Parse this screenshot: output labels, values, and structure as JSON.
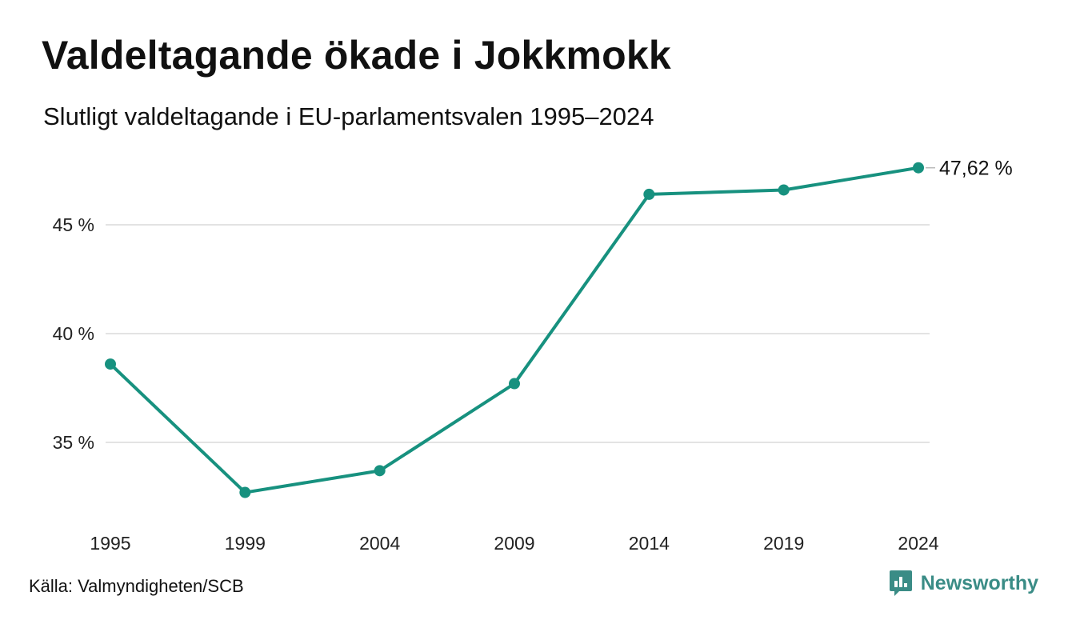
{
  "title": "Valdeltagande ökade i Jokkmokk",
  "subtitle": "Slutligt valdeltagande i EU-parlamentsvalen 1995–2024",
  "source": "Källa: Valmyndigheten/SCB",
  "brand": {
    "name": "Newsworthy",
    "icon": "newsworthy-logo-icon",
    "color": "#3a8c86"
  },
  "chart_data": {
    "type": "line",
    "title": "Valdeltagande ökade i Jokkmokk",
    "subtitle": "Slutligt valdeltagande i EU-parlamentsvalen 1995–2024",
    "x": [
      "1995",
      "1999",
      "2004",
      "2009",
      "2014",
      "2019",
      "2024"
    ],
    "series": [
      {
        "values": [
          38.6,
          32.7,
          33.7,
          37.7,
          46.4,
          46.6,
          47.62
        ],
        "color": "#17917f"
      }
    ],
    "end_label": "47,62 %",
    "y_ticks": [
      35,
      40,
      45
    ],
    "y_tick_labels": [
      "35 %",
      "40 %",
      "45 %"
    ],
    "ylim": [
      32,
      48
    ],
    "grid": true,
    "gridline_color": "#e3e3e3"
  }
}
